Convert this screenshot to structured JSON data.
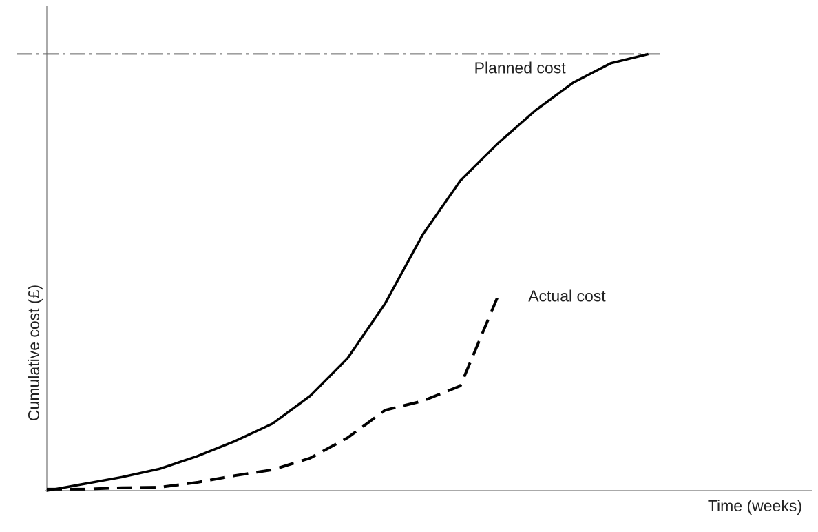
{
  "chart_data": {
    "type": "line",
    "x_label": "Time (weeks)",
    "y_label": "Cumulative cost (£)",
    "x": [
      0,
      5,
      10,
      15,
      20,
      25,
      30,
      35,
      40,
      45,
      50,
      55,
      60,
      65,
      70,
      75,
      80
    ],
    "series": [
      {
        "name": "Planned cost",
        "color": "#000000",
        "dash": false,
        "values": [
          0,
          1.4,
          2.8,
          4.5,
          7.1,
          10.2,
          13.8,
          19.5,
          27.3,
          38.6,
          52.8,
          63.9,
          71.6,
          78.4,
          84.1,
          88.1,
          90
        ]
      },
      {
        "name": "Actual cost",
        "color": "#000000",
        "dash": true,
        "values": [
          0.3,
          0.3,
          0.6,
          0.7,
          1.7,
          3.1,
          4.3,
          6.7,
          10.9,
          16.6,
          18.5,
          21.6,
          40.1,
          null,
          null,
          null,
          null
        ]
      }
    ],
    "reference_line": 90,
    "xlim": [
      0,
      100
    ],
    "ylim": [
      0,
      100
    ]
  }
}
